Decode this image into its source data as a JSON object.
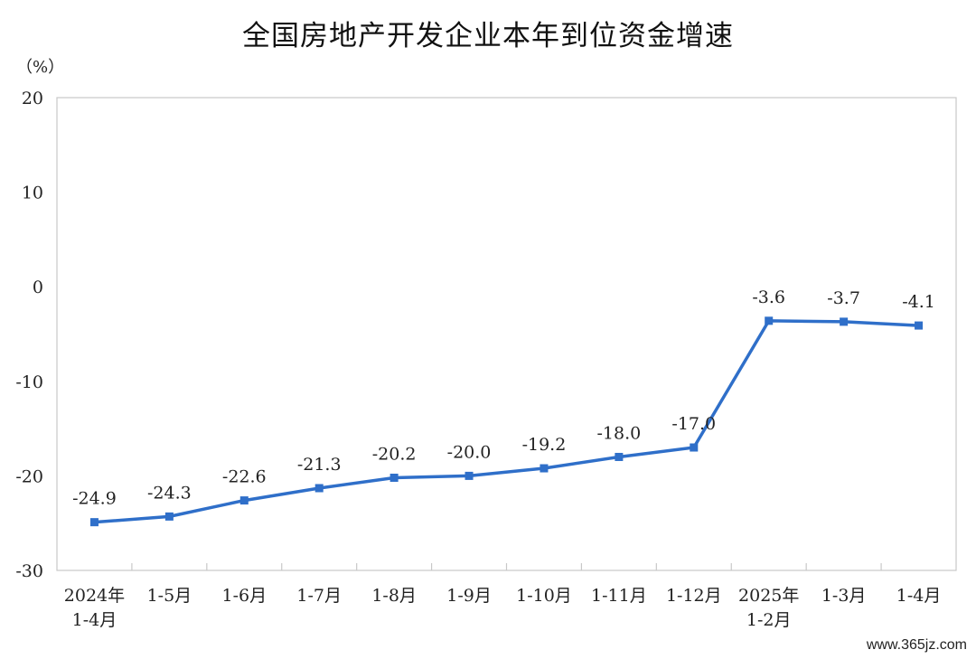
{
  "title": "全国房地产开发企业本年到位资金增速",
  "watermark": "www.365jz.com",
  "chart_data": {
    "type": "line",
    "title": "全国房地产开发企业本年到位资金增速",
    "ylabel": "（%）",
    "xlabel": "",
    "ylim": [
      -30,
      20
    ],
    "yticks": [
      20,
      10,
      0,
      -10,
      -20,
      -30
    ],
    "grid": false,
    "categories": [
      [
        "2024年",
        "1-4月"
      ],
      [
        "1-5月"
      ],
      [
        "1-6月"
      ],
      [
        "1-7月"
      ],
      [
        "1-8月"
      ],
      [
        "1-9月"
      ],
      [
        "1-10月"
      ],
      [
        "1-11月"
      ],
      [
        "1-12月"
      ],
      [
        "2025年",
        "1-2月"
      ],
      [
        "1-3月"
      ],
      [
        "1-4月"
      ]
    ],
    "series": [
      {
        "values": [
          -24.9,
          -24.3,
          -22.6,
          -21.3,
          -20.2,
          -20.0,
          -19.2,
          -18.0,
          -17.0,
          -3.6,
          -3.7,
          -4.1
        ],
        "labels": [
          "-24.9",
          "-24.3",
          "-22.6",
          "-21.3",
          "-20.2",
          "-20.0",
          "-19.2",
          "-18.0",
          "-17.0",
          "-3.6",
          "-3.7",
          "-4.1"
        ],
        "color": "#2f6fc9"
      }
    ]
  }
}
